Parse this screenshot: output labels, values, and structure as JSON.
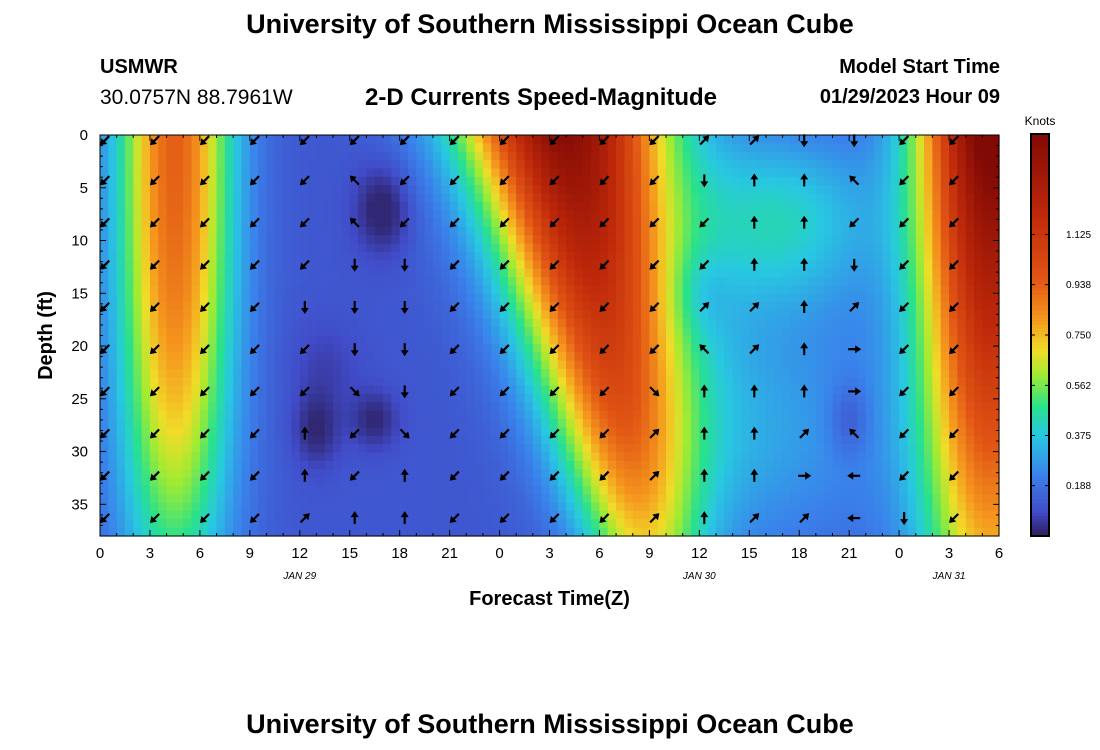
{
  "header": {
    "title": "University of Southern Mississippi Ocean Cube",
    "station": "USMWR",
    "coordinates": "30.0757N  88.7961W",
    "subtitle": "2-D Currents Speed-Magnitude",
    "model_start_label": "Model Start Time",
    "model_start_value": "01/29/2023 Hour 09"
  },
  "footer": {
    "title": "University of Southern Mississippi Ocean Cube"
  },
  "chart_data": {
    "type": "heatmap",
    "title": "2-D Currents Speed-Magnitude",
    "xlabel": "Forecast Time(Z)",
    "ylabel": "Depth (ft)",
    "x_range_hours": [
      0,
      54
    ],
    "y_range_ft": [
      0,
      38
    ],
    "x_ticks": [
      {
        "h": 0,
        "label": "0"
      },
      {
        "h": 3,
        "label": "3"
      },
      {
        "h": 6,
        "label": "6"
      },
      {
        "h": 9,
        "label": "9"
      },
      {
        "h": 12,
        "label": "12"
      },
      {
        "h": 15,
        "label": "15"
      },
      {
        "h": 18,
        "label": "18"
      },
      {
        "h": 21,
        "label": "21"
      },
      {
        "h": 24,
        "label": "0"
      },
      {
        "h": 27,
        "label": "3"
      },
      {
        "h": 30,
        "label": "6"
      },
      {
        "h": 33,
        "label": "9"
      },
      {
        "h": 36,
        "label": "12"
      },
      {
        "h": 39,
        "label": "15"
      },
      {
        "h": 42,
        "label": "18"
      },
      {
        "h": 45,
        "label": "21"
      },
      {
        "h": 48,
        "label": "0"
      },
      {
        "h": 51,
        "label": "3"
      },
      {
        "h": 54,
        "label": "6"
      }
    ],
    "date_labels": [
      {
        "h": 12,
        "label": "JAN 29"
      },
      {
        "h": 36,
        "label": "JAN 30"
      },
      {
        "h": 51,
        "label": "JAN 31"
      }
    ],
    "y_ticks": [
      0,
      5,
      10,
      15,
      20,
      25,
      30,
      35
    ],
    "colorbar": {
      "label": "Knots",
      "range": [
        0,
        1.5
      ],
      "ticks": [
        "1.125",
        "0.938",
        "0.750",
        "0.562",
        "0.375",
        "0.188"
      ],
      "tick_values": [
        1.125,
        0.938,
        0.75,
        0.562,
        0.375,
        0.188
      ]
    },
    "arrow_times_h": [
      0.3,
      3.3,
      6.3,
      9.3,
      12.3,
      15.3,
      18.3,
      21.3,
      24.3,
      27.3,
      30.3,
      33.3,
      36.3,
      39.3,
      42.3,
      45.3,
      48.3,
      51.3
    ],
    "arrow_depths_ft": [
      0.5,
      4.3,
      8.3,
      12.3,
      16.3,
      20.3,
      24.3,
      28.3,
      32.3,
      36.3
    ],
    "arrow_direction_deg": [
      [
        135,
        135,
        135,
        135,
        135,
        135,
        135,
        135,
        135,
        135,
        135,
        135,
        315,
        315,
        90,
        90,
        135,
        135
      ],
      [
        135,
        135,
        135,
        135,
        135,
        225,
        135,
        135,
        135,
        135,
        135,
        135,
        90,
        270,
        270,
        225,
        135,
        135
      ],
      [
        135,
        135,
        135,
        135,
        135,
        225,
        135,
        135,
        135,
        135,
        135,
        135,
        135,
        270,
        270,
        135,
        135,
        135
      ],
      [
        135,
        135,
        135,
        135,
        135,
        90,
        90,
        135,
        135,
        135,
        135,
        135,
        135,
        270,
        270,
        90,
        135,
        135
      ],
      [
        135,
        135,
        135,
        135,
        90,
        90,
        90,
        135,
        135,
        135,
        135,
        135,
        315,
        315,
        270,
        315,
        135,
        135
      ],
      [
        135,
        135,
        135,
        135,
        135,
        90,
        90,
        135,
        135,
        135,
        135,
        135,
        225,
        315,
        270,
        0,
        135,
        135
      ],
      [
        135,
        135,
        135,
        135,
        135,
        45,
        90,
        135,
        135,
        135,
        135,
        45,
        270,
        270,
        270,
        0,
        135,
        135
      ],
      [
        135,
        135,
        135,
        135,
        270,
        135,
        45,
        135,
        135,
        135,
        135,
        315,
        270,
        270,
        315,
        225,
        135,
        135
      ],
      [
        135,
        135,
        135,
        135,
        270,
        135,
        270,
        135,
        135,
        135,
        135,
        315,
        270,
        270,
        0,
        180,
        135,
        135
      ],
      [
        135,
        135,
        135,
        135,
        315,
        270,
        270,
        135,
        135,
        135,
        135,
        315,
        270,
        315,
        315,
        180,
        90,
        135
      ]
    ],
    "speed_field_knots": "smoothly varying magnitude, 0.02-1.5 knots, rendered as gridded heatmap"
  }
}
